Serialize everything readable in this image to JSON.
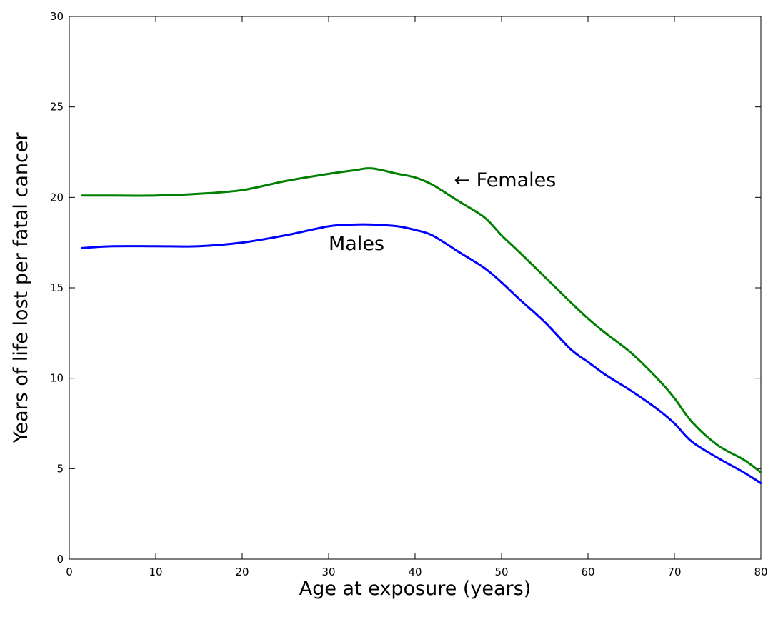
{
  "chart_data": {
    "type": "line",
    "title": "",
    "xlabel": "Age at exposure (years)",
    "ylabel": "Years of life lost per fatal cancer",
    "xlim": [
      0,
      80
    ],
    "ylim": [
      0,
      30
    ],
    "xticks": [
      0,
      10,
      20,
      30,
      40,
      50,
      60,
      70,
      80
    ],
    "yticks": [
      0,
      5,
      10,
      15,
      20,
      25,
      30
    ],
    "grid": false,
    "legend": "none",
    "series": [
      {
        "name": "Females",
        "color": "#008000",
        "x": [
          1.5,
          5,
          10,
          15,
          20,
          25,
          30,
          33,
          35,
          38,
          40,
          42,
          45,
          48,
          50,
          52,
          55,
          58,
          60,
          62,
          65,
          68,
          70,
          72,
          75,
          78,
          80
        ],
        "y": [
          20.1,
          20.1,
          20.1,
          20.2,
          20.4,
          20.9,
          21.3,
          21.5,
          21.6,
          21.3,
          21.1,
          20.7,
          19.8,
          18.9,
          17.9,
          17.0,
          15.6,
          14.2,
          13.3,
          12.5,
          11.4,
          10.0,
          8.9,
          7.6,
          6.3,
          5.5,
          4.8
        ]
      },
      {
        "name": "Males",
        "color": "#0000ff",
        "x": [
          1.5,
          5,
          10,
          15,
          20,
          25,
          30,
          33,
          35,
          38,
          40,
          42,
          45,
          48,
          50,
          52,
          55,
          58,
          60,
          62,
          65,
          68,
          70,
          72,
          75,
          78,
          80
        ],
        "y": [
          17.2,
          17.3,
          17.3,
          17.3,
          17.5,
          17.9,
          18.4,
          18.5,
          18.5,
          18.4,
          18.2,
          17.9,
          17.0,
          16.1,
          15.3,
          14.4,
          13.1,
          11.6,
          10.9,
          10.2,
          9.3,
          8.3,
          7.5,
          6.5,
          5.6,
          4.8,
          4.2
        ]
      }
    ],
    "annotations": [
      {
        "text": "← Females",
        "x": 44.5,
        "y": 20.6,
        "anchor": "start"
      },
      {
        "text": "Males",
        "x": 30,
        "y": 17.1,
        "anchor": "start"
      }
    ]
  }
}
